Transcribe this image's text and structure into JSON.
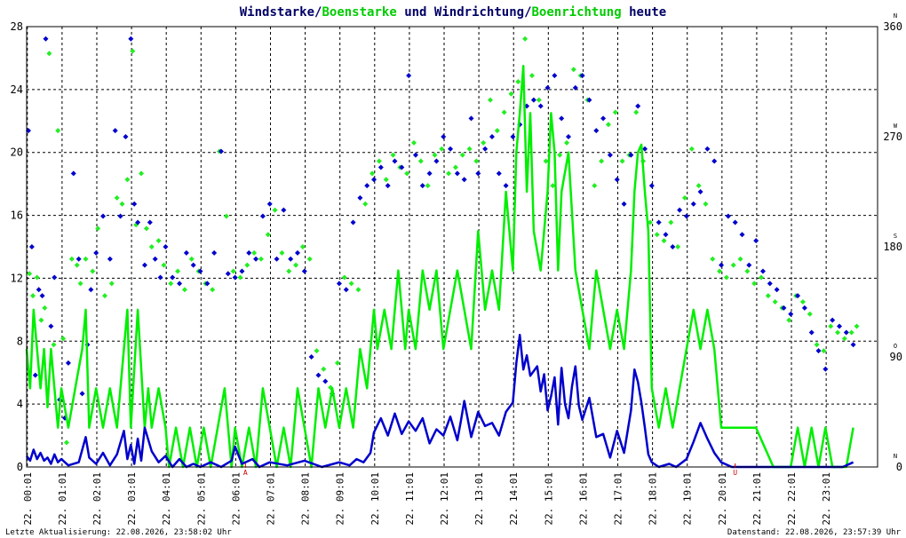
{
  "title": {
    "part1": "Windstarke/",
    "part2": "Boenstarke",
    "part3": " und ",
    "part4": "Windrichtung/",
    "part5": "Boenrichtung",
    "part6": " heute"
  },
  "footer": {
    "left": "Letzte Aktualisierung: 22.08.2026, 23:58:02 Uhr",
    "right": "Datenstand: 22.08.2026, 23:57:39 Uhr"
  },
  "colors": {
    "wind": "#0000cc",
    "gust": "#00ee00",
    "wind_dir": "#0000cc",
    "gust_dir": "#22ee22",
    "grid": "#000000",
    "marker": "#cc0000",
    "title_dark": "#000066",
    "title_green": "#00cc00"
  },
  "chart_data": {
    "type": "line",
    "left_axis": {
      "ylim": [
        0,
        28
      ],
      "ticks": [
        "0",
        "4",
        "8",
        "12",
        "16",
        "20",
        "24",
        "28"
      ]
    },
    "right_axis": {
      "ylim": [
        0,
        360
      ],
      "ticks": [
        "0",
        "90",
        "180",
        "270",
        "360"
      ],
      "compass": [
        "N",
        "O",
        "S",
        "W",
        "N"
      ]
    },
    "x_labels": [
      "22. 00:01",
      "22. 01:01",
      "22. 02:01",
      "22. 03:01",
      "22. 04:01",
      "22. 05:01",
      "22. 06:01",
      "22. 07:01",
      "22. 08:01",
      "22. 09:01",
      "22. 10:01",
      "22. 11:01",
      "22. 12:01",
      "22. 13:01",
      "22. 14:01",
      "22. 15:01",
      "22. 16:01",
      "22. 17:01",
      "22. 18:01",
      "22. 19:01",
      "22. 20:01",
      "22. 21:01",
      "22. 22:01",
      "22. 23:01"
    ],
    "markers": [
      {
        "label": "A",
        "hour": 6.3
      },
      {
        "label": "U",
        "hour": 20.4
      }
    ],
    "series": [
      {
        "name": "Windstarke",
        "kind": "line",
        "x": [
          0.0,
          0.1,
          0.2,
          0.3,
          0.4,
          0.5,
          0.6,
          0.7,
          0.8,
          0.9,
          1.0,
          1.2,
          1.5,
          1.7,
          1.8,
          2.0,
          2.2,
          2.4,
          2.6,
          2.8,
          2.9,
          3.0,
          3.1,
          3.2,
          3.3,
          3.4,
          3.6,
          3.8,
          4.0,
          4.2,
          4.4,
          4.6,
          4.8,
          5.0,
          5.3,
          5.6,
          5.9,
          6.0,
          6.2,
          6.5,
          6.7,
          7.0,
          7.5,
          8.0,
          8.5,
          9.0,
          9.3,
          9.5,
          9.7,
          9.9,
          10.0,
          10.2,
          10.4,
          10.6,
          10.8,
          11.0,
          11.2,
          11.4,
          11.6,
          11.8,
          12.0,
          12.2,
          12.4,
          12.5,
          12.6,
          12.8,
          13.0,
          13.2,
          13.4,
          13.6,
          13.8,
          14.0,
          14.1,
          14.2,
          14.3,
          14.4,
          14.5,
          14.7,
          14.8,
          14.9,
          15.0,
          15.1,
          15.2,
          15.3,
          15.4,
          15.5,
          15.6,
          15.7,
          15.8,
          15.9,
          16.0,
          16.2,
          16.4,
          16.6,
          16.8,
          17.0,
          17.2,
          17.4,
          17.5,
          17.6,
          17.7,
          17.8,
          17.9,
          18.0,
          18.2,
          18.5,
          18.7,
          19.0,
          19.2,
          19.4,
          19.6,
          19.8,
          20.0,
          20.3,
          20.6,
          21.0,
          21.5,
          22.0,
          22.5,
          23.0,
          23.5,
          23.8
        ],
        "values": [
          0.7,
          0.4,
          1.1,
          0.5,
          0.9,
          0.4,
          0.6,
          0.2,
          0.8,
          0.3,
          0.5,
          0.1,
          0.3,
          1.9,
          0.6,
          0.2,
          0.9,
          0.1,
          0.8,
          2.3,
          0.5,
          1.4,
          0.2,
          1.8,
          0.4,
          2.5,
          1.0,
          0.3,
          0.7,
          0.0,
          0.5,
          0.0,
          0.2,
          0.0,
          0.3,
          0.0,
          0.4,
          1.3,
          0.2,
          0.5,
          0.0,
          0.3,
          0.1,
          0.4,
          0.0,
          0.3,
          0.1,
          0.5,
          0.3,
          0.9,
          2.2,
          3.1,
          2.0,
          3.4,
          2.1,
          2.9,
          2.3,
          3.1,
          1.5,
          2.4,
          2.0,
          3.2,
          1.7,
          2.9,
          4.2,
          1.9,
          3.5,
          2.6,
          2.8,
          2.0,
          3.5,
          4.1,
          6.6,
          8.4,
          6.2,
          7.1,
          5.8,
          6.4,
          4.8,
          5.9,
          3.6,
          4.5,
          5.7,
          2.7,
          6.3,
          4.0,
          3.1,
          5.1,
          6.4,
          3.9,
          3.0,
          4.4,
          1.9,
          2.1,
          0.6,
          2.3,
          0.9,
          3.6,
          6.2,
          5.4,
          4.1,
          2.5,
          0.8,
          0.3,
          0.0,
          0.2,
          0.0,
          0.5,
          1.6,
          2.8,
          1.8,
          0.9,
          0.3,
          0.0,
          0.0,
          0.0,
          0.0,
          0.0,
          0.0,
          0.0,
          0.0,
          0.3
        ]
      },
      {
        "name": "Boenstarke",
        "kind": "line",
        "x": [
          0.0,
          0.1,
          0.2,
          0.3,
          0.4,
          0.5,
          0.6,
          0.7,
          0.8,
          0.9,
          1.0,
          1.2,
          1.4,
          1.6,
          1.7,
          1.8,
          2.0,
          2.2,
          2.4,
          2.6,
          2.8,
          2.9,
          3.0,
          3.2,
          3.4,
          3.5,
          3.6,
          3.8,
          4.0,
          4.1,
          4.3,
          4.5,
          4.7,
          4.9,
          5.1,
          5.3,
          5.5,
          5.7,
          5.9,
          6.0,
          6.2,
          6.4,
          6.6,
          6.8,
          7.0,
          7.2,
          7.4,
          7.6,
          7.8,
          8.0,
          8.2,
          8.4,
          8.6,
          8.8,
          9.0,
          9.2,
          9.4,
          9.6,
          9.8,
          10.0,
          10.1,
          10.3,
          10.5,
          10.7,
          10.9,
          11.0,
          11.2,
          11.4,
          11.6,
          11.8,
          12.0,
          12.2,
          12.4,
          12.6,
          12.8,
          13.0,
          13.2,
          13.4,
          13.6,
          13.8,
          14.0,
          14.1,
          14.2,
          14.3,
          14.4,
          14.5,
          14.6,
          14.8,
          15.0,
          15.1,
          15.2,
          15.3,
          15.4,
          15.6,
          15.8,
          16.0,
          16.2,
          16.4,
          16.6,
          16.8,
          17.0,
          17.2,
          17.4,
          17.5,
          17.6,
          17.7,
          17.8,
          17.9,
          18.0,
          18.2,
          18.4,
          18.6,
          18.8,
          19.0,
          19.2,
          19.4,
          19.6,
          19.8,
          20.0,
          20.3,
          20.6,
          21.0,
          21.5,
          22.0,
          22.2,
          22.4,
          22.6,
          22.8,
          23.0,
          23.2,
          23.4,
          23.6,
          23.8
        ],
        "values": [
          7.5,
          5.0,
          10.0,
          7.5,
          5.0,
          7.5,
          3.8,
          7.5,
          5.0,
          2.5,
          5.0,
          2.5,
          5.0,
          7.5,
          10.0,
          2.5,
          5.0,
          2.5,
          5.0,
          2.5,
          7.5,
          10.0,
          2.5,
          10.0,
          2.5,
          5.0,
          2.5,
          5.0,
          2.5,
          0.0,
          2.5,
          0.0,
          2.5,
          0.0,
          2.5,
          0.0,
          2.5,
          5.0,
          0.0,
          2.5,
          0.0,
          2.5,
          0.0,
          5.0,
          2.5,
          0.0,
          2.5,
          0.0,
          5.0,
          2.5,
          0.0,
          5.0,
          2.5,
          5.0,
          2.5,
          5.0,
          2.5,
          7.5,
          5.0,
          10.0,
          7.5,
          10.0,
          7.5,
          12.5,
          7.5,
          10.0,
          7.5,
          12.5,
          10.0,
          12.5,
          7.5,
          10.0,
          12.5,
          10.0,
          7.5,
          15.0,
          10.0,
          12.5,
          10.0,
          17.5,
          12.5,
          20.0,
          22.5,
          25.5,
          17.5,
          22.5,
          15.0,
          12.5,
          17.5,
          22.5,
          20.0,
          12.5,
          17.5,
          20.0,
          12.5,
          10.0,
          7.5,
          12.5,
          10.0,
          7.5,
          10.0,
          7.5,
          12.5,
          17.5,
          20.0,
          20.5,
          17.5,
          15.0,
          5.0,
          2.5,
          5.0,
          2.5,
          5.0,
          7.5,
          10.0,
          7.5,
          10.0,
          7.5,
          2.5,
          2.5,
          2.5,
          2.5,
          0.0,
          0.0,
          2.5,
          0.0,
          2.5,
          0.0,
          2.5,
          0.0,
          0.0,
          0.0,
          2.5
        ]
      },
      {
        "name": "Windrichtung",
        "kind": "scatter",
        "axis": "right",
        "x": [
          0.05,
          0.15,
          0.25,
          0.35,
          0.45,
          0.55,
          0.7,
          0.8,
          0.95,
          1.1,
          1.2,
          1.35,
          1.5,
          1.6,
          1.75,
          1.85,
          2.0,
          2.2,
          2.4,
          2.55,
          2.7,
          2.85,
          3.0,
          3.1,
          3.2,
          3.4,
          3.55,
          3.7,
          3.85,
          4.0,
          4.2,
          4.4,
          4.6,
          4.8,
          5.0,
          5.2,
          5.4,
          5.6,
          5.8,
          6.0,
          6.2,
          6.4,
          6.6,
          6.8,
          7.0,
          7.2,
          7.4,
          7.6,
          7.8,
          8.0,
          8.2,
          8.4,
          8.6,
          8.8,
          9.0,
          9.2,
          9.4,
          9.6,
          9.8,
          10.0,
          10.2,
          10.4,
          10.6,
          10.8,
          11.0,
          11.2,
          11.4,
          11.6,
          11.8,
          12.0,
          12.2,
          12.4,
          12.6,
          12.8,
          13.0,
          13.2,
          13.4,
          13.6,
          13.8,
          14.0,
          14.2,
          14.4,
          14.6,
          14.8,
          15.0,
          15.2,
          15.4,
          15.6,
          15.8,
          16.0,
          16.2,
          16.4,
          16.6,
          16.8,
          17.0,
          17.2,
          17.4,
          17.6,
          17.8,
          18.0,
          18.2,
          18.4,
          18.6,
          18.8,
          19.0,
          19.2,
          19.4,
          19.6,
          19.8,
          20.0,
          20.2,
          20.4,
          20.6,
          20.8,
          21.0,
          21.2,
          21.4,
          21.6,
          21.8,
          22.0,
          22.2,
          22.4,
          22.6,
          22.8,
          23.0,
          23.2,
          23.4,
          23.6,
          23.8
        ],
        "values": [
          275,
          180,
          75,
          145,
          140,
          350,
          115,
          155,
          55,
          40,
          85,
          240,
          170,
          60,
          100,
          145,
          175,
          205,
          170,
          275,
          205,
          270,
          350,
          215,
          200,
          165,
          200,
          170,
          155,
          180,
          155,
          150,
          175,
          165,
          160,
          150,
          175,
          258,
          158,
          155,
          160,
          175,
          170,
          205,
          215,
          170,
          210,
          170,
          175,
          160,
          90,
          75,
          70,
          60,
          150,
          145,
          200,
          220,
          230,
          235,
          245,
          230,
          250,
          245,
          320,
          255,
          230,
          240,
          250,
          270,
          260,
          240,
          235,
          285,
          240,
          260,
          270,
          240,
          230,
          270,
          280,
          295,
          300,
          295,
          310,
          320,
          285,
          270,
          310,
          320,
          300,
          275,
          285,
          255,
          235,
          215,
          255,
          295,
          260,
          230,
          200,
          190,
          180,
          210,
          205,
          215,
          225,
          260,
          250,
          165,
          205,
          200,
          190,
          165,
          185,
          160,
          150,
          145,
          130,
          125,
          140,
          130,
          110,
          95,
          80,
          120,
          115,
          110,
          100
        ]
      },
      {
        "name": "Boenrichtung",
        "kind": "scatter",
        "axis": "right",
        "x": [
          0.08,
          0.18,
          0.3,
          0.42,
          0.52,
          0.65,
          0.78,
          0.9,
          1.05,
          1.15,
          1.3,
          1.45,
          1.55,
          1.7,
          1.9,
          2.05,
          2.25,
          2.45,
          2.6,
          2.75,
          2.9,
          3.05,
          3.15,
          3.3,
          3.45,
          3.6,
          3.8,
          3.95,
          4.15,
          4.35,
          4.55,
          4.75,
          4.95,
          5.15,
          5.35,
          5.55,
          5.75,
          5.95,
          6.15,
          6.35,
          6.55,
          6.75,
          6.95,
          7.15,
          7.35,
          7.55,
          7.75,
          7.95,
          8.15,
          8.35,
          8.55,
          8.75,
          8.95,
          9.15,
          9.35,
          9.55,
          9.75,
          9.95,
          10.15,
          10.35,
          10.55,
          10.75,
          10.95,
          11.15,
          11.35,
          11.55,
          11.75,
          11.95,
          12.15,
          12.35,
          12.55,
          12.75,
          12.95,
          13.15,
          13.35,
          13.55,
          13.75,
          13.95,
          14.15,
          14.35,
          14.55,
          14.75,
          14.95,
          15.15,
          15.35,
          15.55,
          15.75,
          15.95,
          16.15,
          16.35,
          16.55,
          16.75,
          16.95,
          17.15,
          17.35,
          17.55,
          17.75,
          17.95,
          18.15,
          18.35,
          18.55,
          18.75,
          18.95,
          19.15,
          19.35,
          19.55,
          19.75,
          19.95,
          20.15,
          20.35,
          20.55,
          20.75,
          20.95,
          21.15,
          21.35,
          21.55,
          21.75,
          21.95,
          22.15,
          22.35,
          22.55,
          22.75,
          22.95,
          23.15,
          23.35,
          23.55,
          23.75,
          23.9
        ],
        "values": [
          158,
          140,
          155,
          120,
          130,
          338,
          100,
          275,
          105,
          20,
          170,
          165,
          150,
          170,
          160,
          195,
          140,
          150,
          220,
          215,
          235,
          340,
          198,
          240,
          195,
          180,
          185,
          165,
          150,
          160,
          145,
          170,
          160,
          150,
          145,
          258,
          205,
          160,
          155,
          165,
          175,
          170,
          190,
          210,
          175,
          160,
          165,
          180,
          170,
          95,
          80,
          65,
          85,
          155,
          150,
          145,
          215,
          240,
          250,
          235,
          255,
          245,
          240,
          265,
          250,
          230,
          255,
          260,
          240,
          245,
          255,
          260,
          250,
          265,
          300,
          275,
          290,
          305,
          315,
          350,
          320,
          300,
          250,
          230,
          255,
          265,
          325,
          320,
          300,
          230,
          250,
          280,
          290,
          250,
          255,
          290,
          250,
          200,
          190,
          185,
          200,
          180,
          220,
          260,
          230,
          215,
          170,
          160,
          155,
          165,
          170,
          160,
          150,
          155,
          140,
          135,
          130,
          120,
          140,
          135,
          125,
          100,
          95,
          115,
          110,
          105,
          110,
          115
        ]
      }
    ]
  }
}
